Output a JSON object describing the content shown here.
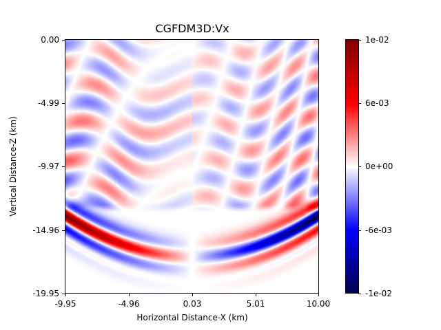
{
  "chart_data": {
    "type": "heatmap",
    "title": "CGFDM3D:Vx",
    "xlabel": "Horizontal Distance-X (km)",
    "ylabel": "Vertical Distance-Z (km)",
    "xlim": [
      -9.95,
      10.0
    ],
    "ylim": [
      -19.95,
      0.0
    ],
    "x_ticks": [
      "-9.95",
      "-4.96",
      "0.03",
      "5.01",
      "10.00"
    ],
    "y_ticks": [
      "0.00",
      "-4.99",
      "-9.97",
      "-14.96",
      "-19.95"
    ],
    "colormap": "seismic",
    "color_range": [
      -0.012,
      0.012
    ],
    "colorbar_ticks": [
      "1e-02",
      "6e-03",
      "0e+00",
      "-6e-03",
      "-1e-02"
    ],
    "colors": {
      "negative": "#00004d",
      "mid_negative": "#0000ff",
      "zero": "#ffffff",
      "mid_positive": "#ff0000",
      "positive": "#800000"
    },
    "description_of_field": "Antisymmetric curved wavefront bands near z = -14 to -17 km; positive (red) core on left, negative (blue) core on right; weak reverberation bands above"
  }
}
